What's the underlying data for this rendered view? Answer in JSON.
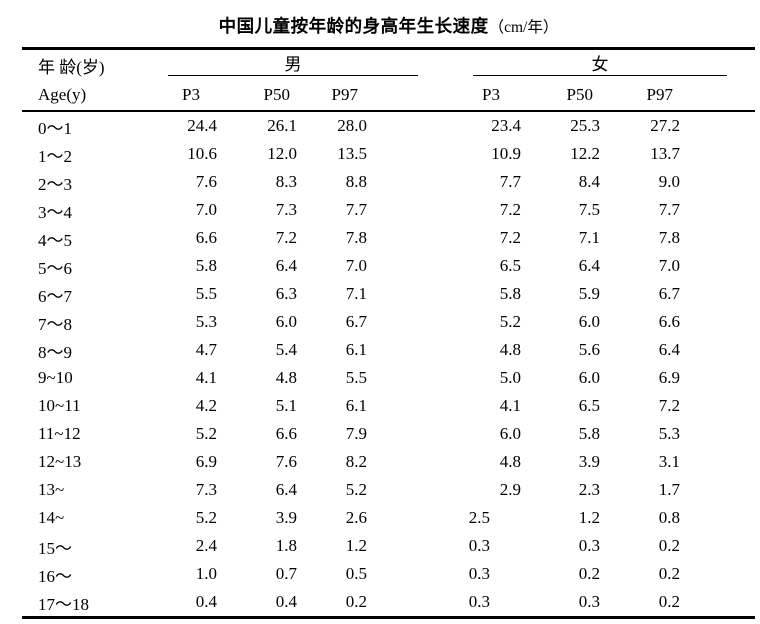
{
  "title": {
    "main": "中国儿童按年龄的身高年生长速度",
    "unit": "（cm/年）"
  },
  "table": {
    "age_header_line1": "年 龄(岁)",
    "age_header_line2": "Age(y)",
    "groups": [
      {
        "label": "男"
      },
      {
        "label": "女"
      }
    ],
    "sub_headers": [
      "P3",
      "P50",
      "P97",
      "P3",
      "P50",
      "P97"
    ],
    "rows": [
      {
        "age": "0～1",
        "male": [
          "24.4",
          "26.1",
          "28.0"
        ],
        "female": [
          "23.4",
          "25.3",
          "27.2"
        ]
      },
      {
        "age": "1～2",
        "male": [
          "10.6",
          "12.0",
          "13.5"
        ],
        "female": [
          "10.9",
          "12.2",
          "13.7"
        ]
      },
      {
        "age": "2～3",
        "male": [
          "7.6",
          "8.3",
          "8.8"
        ],
        "female": [
          "7.7",
          "8.4",
          "9.0"
        ]
      },
      {
        "age": "3～4",
        "male": [
          "7.0",
          "7.3",
          "7.7"
        ],
        "female": [
          "7.2",
          "7.5",
          "7.7"
        ]
      },
      {
        "age": "4～5",
        "male": [
          "6.6",
          "7.2",
          "7.8"
        ],
        "female": [
          "7.2",
          "7.1",
          "7.8"
        ]
      },
      {
        "age": "5～6",
        "male": [
          "5.8",
          "6.4",
          "7.0"
        ],
        "female": [
          "6.5",
          "6.4",
          "7.0"
        ]
      },
      {
        "age": "6～7",
        "male": [
          "5.5",
          "6.3",
          "7.1"
        ],
        "female": [
          "5.8",
          "5.9",
          "6.7"
        ]
      },
      {
        "age": "7～8",
        "male": [
          "5.3",
          "6.0",
          "6.7"
        ],
        "female": [
          "5.2",
          "6.0",
          "6.6"
        ]
      },
      {
        "age": "8～9",
        "male": [
          "4.7",
          "5.4",
          "6.1"
        ],
        "female": [
          "4.8",
          "5.6",
          "6.4"
        ]
      },
      {
        "age": "9~10",
        "male": [
          "4.1",
          "4.8",
          "5.5"
        ],
        "female": [
          "5.0",
          "6.0",
          "6.9"
        ]
      },
      {
        "age": "10~11",
        "male": [
          "4.2",
          "5.1",
          "6.1"
        ],
        "female": [
          "4.1",
          "6.5",
          "7.2"
        ]
      },
      {
        "age": "11~12",
        "male": [
          "5.2",
          "6.6",
          "7.9"
        ],
        "female": [
          "6.0",
          "5.8",
          "5.3"
        ]
      },
      {
        "age": "12~13",
        "male": [
          "6.9",
          "7.6",
          "8.2"
        ],
        "female": [
          "4.8",
          "3.9",
          "3.1"
        ]
      },
      {
        "age": "13~",
        "male": [
          "7.3",
          "6.4",
          "5.2"
        ],
        "female": [
          "2.9",
          "2.3",
          "1.7"
        ]
      },
      {
        "age": "14~",
        "male": [
          "5.2",
          "3.9",
          "2.6"
        ],
        "female": [
          "2.5",
          "1.2",
          "0.8"
        ]
      },
      {
        "age": "15～",
        "male": [
          "2.4",
          "1.8",
          "1.2"
        ],
        "female": [
          "0.3",
          "0.3",
          "0.2"
        ]
      },
      {
        "age": "16～",
        "male": [
          "1.0",
          "0.7",
          "0.5"
        ],
        "female": [
          "0.3",
          "0.2",
          "0.2"
        ]
      },
      {
        "age": "17～18",
        "male": [
          "0.4",
          "0.4",
          "0.2"
        ],
        "female": [
          "0.3",
          "0.3",
          "0.2"
        ]
      }
    ]
  }
}
